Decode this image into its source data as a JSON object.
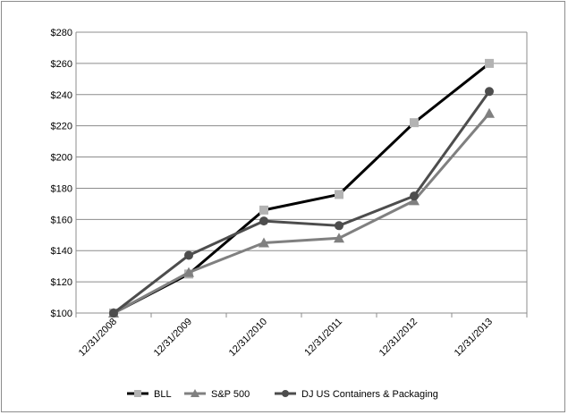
{
  "chart_data": {
    "type": "line",
    "categories": [
      "12/31/2008",
      "12/31/2009",
      "12/31/2010",
      "12/31/2011",
      "12/31/2012",
      "12/31/2013"
    ],
    "y_tick_labels": [
      "$100",
      "$120",
      "$140",
      "$160",
      "$180",
      "$200",
      "$220",
      "$240",
      "$260",
      "$280"
    ],
    "ylim": [
      100,
      280
    ],
    "y_tick_step": 20,
    "grid": true,
    "legend_position": "bottom",
    "series": [
      {
        "name": "BLL",
        "values": [
          100,
          125,
          166,
          176,
          222,
          260
        ],
        "color": "#000000",
        "marker_color": "#b3b3b3",
        "marker": "square"
      },
      {
        "name": "S&P 500",
        "values": [
          100,
          126,
          145,
          148,
          172,
          228
        ],
        "color": "#808080",
        "marker_color": "#808080",
        "marker": "triangle"
      },
      {
        "name": "DJ US Containers & Packaging",
        "values": [
          100,
          137,
          159,
          156,
          175,
          242
        ],
        "color": "#4d4d4d",
        "marker_color": "#4d4d4d",
        "marker": "circle"
      }
    ]
  }
}
